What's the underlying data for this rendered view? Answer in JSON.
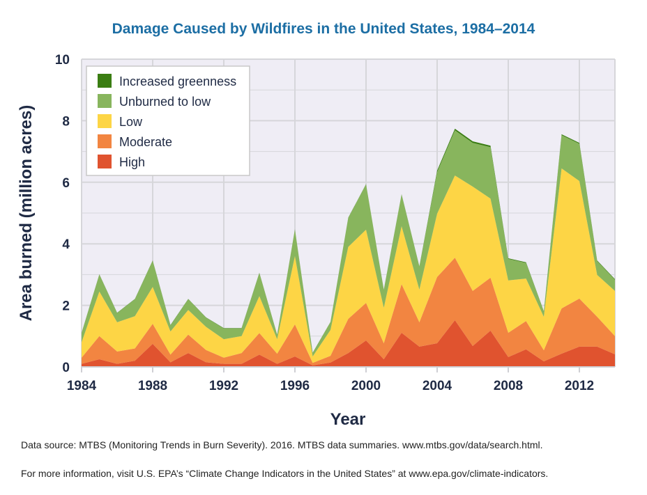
{
  "chart_data": {
    "type": "area",
    "stacked": true,
    "title": "Damage Caused by Wildfires in the United States, 1984–2014",
    "xlabel": "Year",
    "ylabel": "Area burned (million acres)",
    "xlim": [
      1984,
      2014
    ],
    "ylim": [
      0,
      10
    ],
    "xticks": [
      "1984",
      "1988",
      "1992",
      "1996",
      "2000",
      "2004",
      "2008",
      "2012"
    ],
    "yticks": [
      "0",
      "2",
      "4",
      "6",
      "8",
      "10"
    ],
    "grid": true,
    "legend_position": "top-left",
    "x": [
      1984,
      1985,
      1986,
      1987,
      1988,
      1989,
      1990,
      1991,
      1992,
      1993,
      1994,
      1995,
      1996,
      1997,
      1998,
      1999,
      2000,
      2001,
      2002,
      2003,
      2004,
      2005,
      2006,
      2007,
      2008,
      2009,
      2010,
      2011,
      2012,
      2013,
      2014
    ],
    "series": [
      {
        "name": "High",
        "color": "#e0532f",
        "values": [
          0.1,
          0.25,
          0.1,
          0.2,
          0.75,
          0.15,
          0.45,
          0.15,
          0.1,
          0.1,
          0.4,
          0.1,
          0.34,
          0.05,
          0.14,
          0.45,
          0.86,
          0.25,
          1.11,
          0.66,
          0.77,
          1.52,
          0.68,
          1.18,
          0.32,
          0.57,
          0.18,
          0.43,
          0.66,
          0.66,
          0.41
        ]
      },
      {
        "name": "Moderate",
        "color": "#f28541",
        "values": [
          0.2,
          0.75,
          0.4,
          0.4,
          0.65,
          0.25,
          0.6,
          0.4,
          0.2,
          0.35,
          0.7,
          0.33,
          1.04,
          0.08,
          0.22,
          1.11,
          1.22,
          0.52,
          1.58,
          0.79,
          2.15,
          2.03,
          1.79,
          1.72,
          0.79,
          0.92,
          0.36,
          1.47,
          1.56,
          0.97,
          0.59
        ]
      },
      {
        "name": "Low",
        "color": "#fdd545",
        "values": [
          0.5,
          1.45,
          0.95,
          1.05,
          1.2,
          0.75,
          0.8,
          0.75,
          0.6,
          0.55,
          1.2,
          0.47,
          2.22,
          0.21,
          0.84,
          2.34,
          2.38,
          1.15,
          1.88,
          1.06,
          2.06,
          2.67,
          3.39,
          2.57,
          1.7,
          1.38,
          1.09,
          4.55,
          3.82,
          1.36,
          1.47
        ]
      },
      {
        "name": "Unburned to low",
        "color": "#88b55d",
        "values": [
          0.3,
          0.55,
          0.3,
          0.55,
          0.85,
          0.2,
          0.35,
          0.3,
          0.35,
          0.25,
          0.75,
          0.14,
          0.86,
          0.11,
          0.25,
          0.94,
          1.47,
          0.58,
          1.03,
          0.75,
          1.35,
          1.47,
          1.42,
          1.67,
          0.7,
          0.51,
          0.17,
          1.08,
          1.21,
          0.45,
          0.36
        ]
      },
      {
        "name": "Increased greenness",
        "color": "#3a7d12",
        "values": [
          0.01,
          0.01,
          0.01,
          0.01,
          0.01,
          0.01,
          0.01,
          0.01,
          0.01,
          0.01,
          0.01,
          0.01,
          0.01,
          0.01,
          0.01,
          0.01,
          0.01,
          0.01,
          0.01,
          0.01,
          0.05,
          0.05,
          0.05,
          0.05,
          0.02,
          0.02,
          0.01,
          0.03,
          0.03,
          0.02,
          0.02
        ]
      }
    ]
  },
  "colors": {
    "title": "#1c6ea4",
    "axis_text": "#1f2a44",
    "plot_bg": "#efedf5",
    "grid": "#d6d6da"
  },
  "notes": {
    "source": "Data source: MTBS (Monitoring Trends in Burn Severity). 2016. MTBS data summaries. www.mtbs.gov/data/search.html.",
    "more_info": "For more information, visit U.S. EPA’s “Climate Change Indicators in the United States” at www.epa.gov/climate-indicators."
  }
}
